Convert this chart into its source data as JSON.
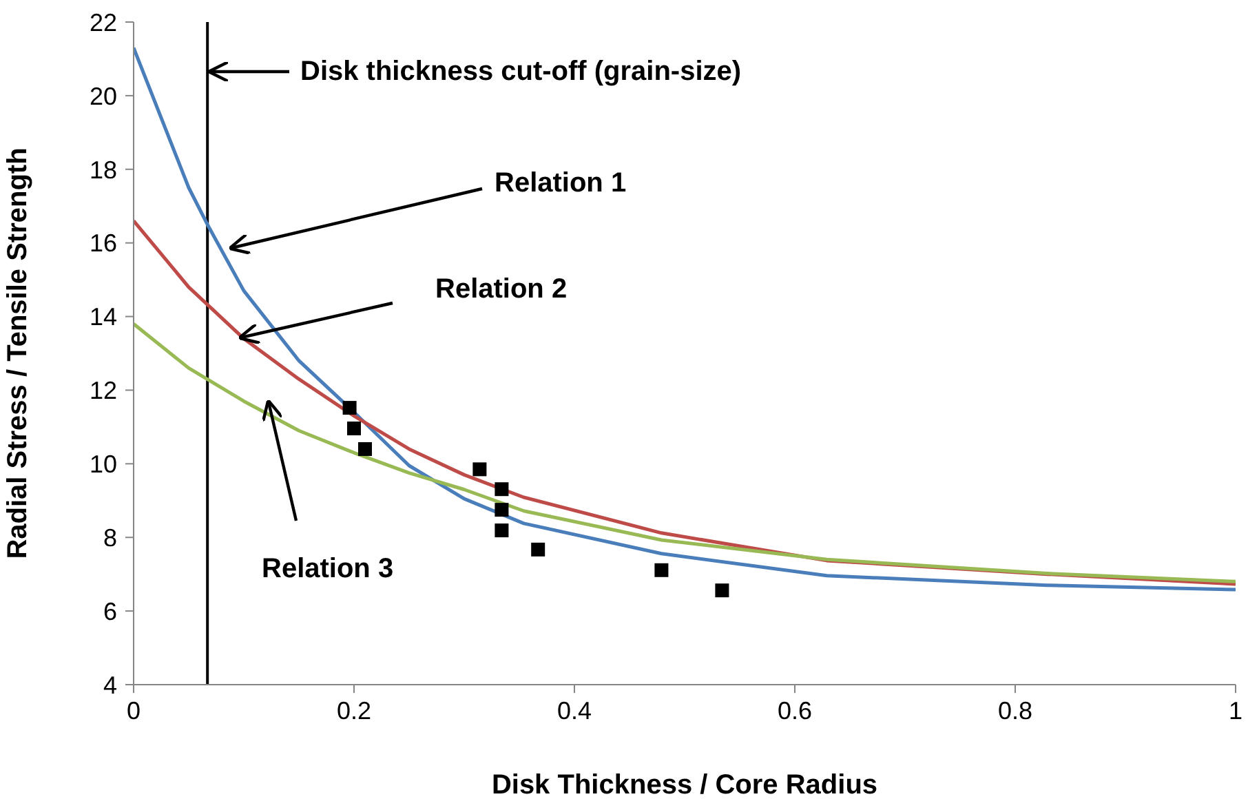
{
  "chart_data": {
    "type": "line",
    "xlabel": "Disk Thickness / Core Radius",
    "ylabel": "Radial Stress / Tensile Strength",
    "xlim": [
      0,
      1
    ],
    "xticks": [
      0,
      0.2,
      0.4,
      0.6,
      0.8,
      1
    ],
    "ylim": [
      4,
      22
    ],
    "yticks": [
      4,
      6,
      8,
      10,
      12,
      14,
      16,
      18,
      20,
      22
    ],
    "grid": false,
    "series": [
      {
        "color": "#4a7ebb",
        "marker": "none",
        "x": [
          0,
          0.05,
          0.067,
          0.1,
          0.15,
          0.2,
          0.25,
          0.3,
          0.354,
          0.479,
          0.629,
          0.829,
          1
        ],
        "values": [
          21.3,
          17.5,
          16.5,
          14.7,
          12.8,
          11.4,
          9.95,
          9.05,
          8.38,
          7.56,
          6.96,
          6.7,
          6.58
        ]
      },
      {
        "color": "#be4b48",
        "marker": "none",
        "x": [
          0,
          0.05,
          0.1,
          0.15,
          0.2,
          0.25,
          0.3,
          0.354,
          0.479,
          0.629,
          0.829,
          1
        ],
        "values": [
          16.6,
          14.8,
          13.4,
          12.3,
          11.3,
          10.4,
          9.7,
          9.09,
          8.12,
          7.37,
          7.0,
          6.73
        ]
      },
      {
        "color": "#98b954",
        "marker": "none",
        "x": [
          0,
          0.05,
          0.1,
          0.15,
          0.2,
          0.25,
          0.3,
          0.354,
          0.479,
          0.629,
          0.829,
          1
        ],
        "values": [
          13.8,
          12.6,
          11.7,
          10.9,
          10.3,
          9.75,
          9.3,
          8.72,
          7.93,
          7.4,
          7.02,
          6.8
        ]
      },
      {
        "type": "scatter",
        "color": "#000000",
        "marker": "square",
        "x": [
          0.196,
          0.2,
          0.21,
          0.314,
          0.334,
          0.334,
          0.334,
          0.367,
          0.479,
          0.534
        ],
        "values": [
          11.52,
          10.96,
          10.4,
          9.85,
          9.31,
          8.75,
          8.19,
          7.67,
          7.11,
          6.56
        ]
      }
    ],
    "ref_lines": [
      {
        "axis": "x",
        "value": 0.067,
        "color": "#000000"
      }
    ],
    "annotations": [
      "Disk thickness cut-off (grain-size)",
      "Relation 1",
      "Relation 2",
      "Relation 3"
    ]
  }
}
